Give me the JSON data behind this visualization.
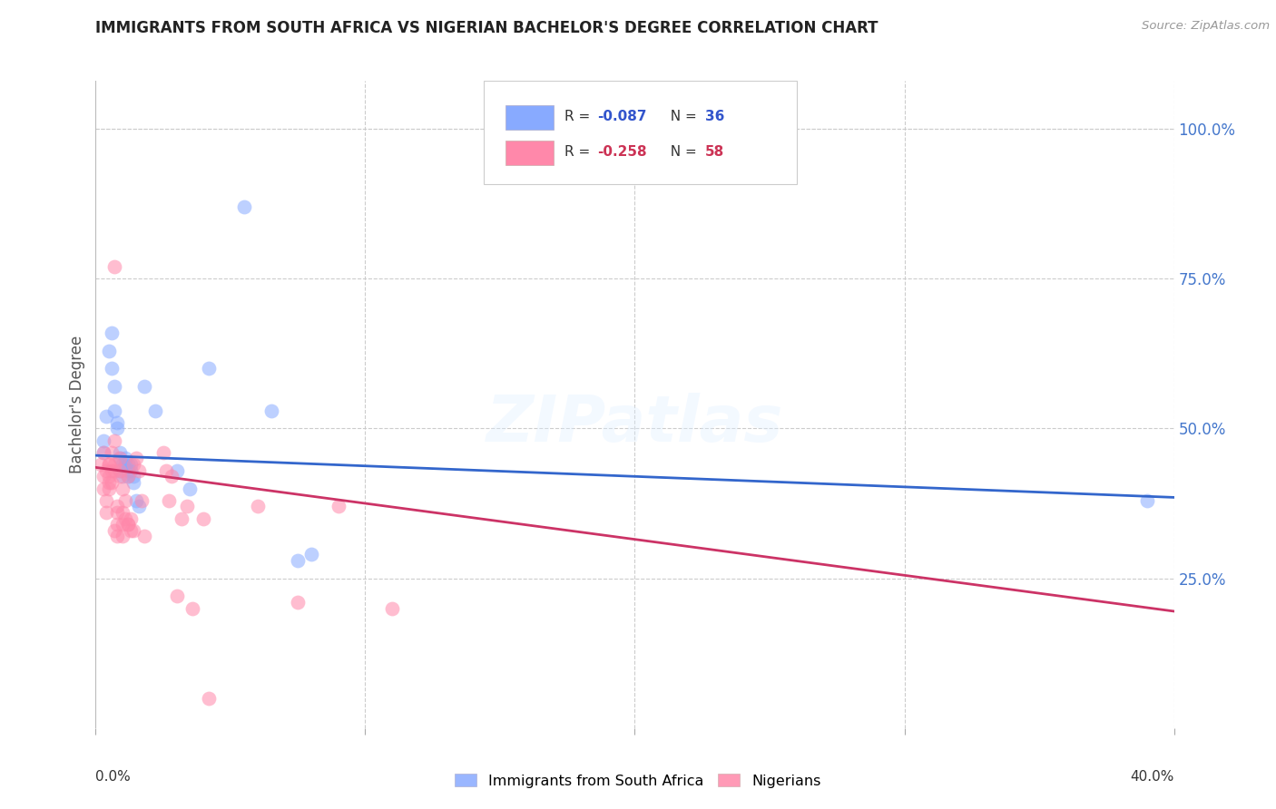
{
  "title": "IMMIGRANTS FROM SOUTH AFRICA VS NIGERIAN BACHELOR'S DEGREE CORRELATION CHART",
  "source": "Source: ZipAtlas.com",
  "ylabel": "Bachelor's Degree",
  "right_yticks": [
    "100.0%",
    "75.0%",
    "50.0%",
    "25.0%"
  ],
  "right_ytick_vals": [
    1.0,
    0.75,
    0.5,
    0.25
  ],
  "xmin": 0.0,
  "xmax": 0.4,
  "ymin": 0.0,
  "ymax": 1.08,
  "blue_points": [
    [
      0.003,
      0.46
    ],
    [
      0.003,
      0.48
    ],
    [
      0.004,
      0.52
    ],
    [
      0.005,
      0.63
    ],
    [
      0.006,
      0.66
    ],
    [
      0.006,
      0.6
    ],
    [
      0.007,
      0.57
    ],
    [
      0.007,
      0.53
    ],
    [
      0.008,
      0.51
    ],
    [
      0.008,
      0.5
    ],
    [
      0.009,
      0.46
    ],
    [
      0.009,
      0.43
    ],
    [
      0.009,
      0.45
    ],
    [
      0.01,
      0.44
    ],
    [
      0.01,
      0.42
    ],
    [
      0.011,
      0.45
    ],
    [
      0.011,
      0.44
    ],
    [
      0.012,
      0.43
    ],
    [
      0.012,
      0.44
    ],
    [
      0.012,
      0.42
    ],
    [
      0.013,
      0.44
    ],
    [
      0.013,
      0.43
    ],
    [
      0.014,
      0.42
    ],
    [
      0.014,
      0.41
    ],
    [
      0.015,
      0.38
    ],
    [
      0.016,
      0.37
    ],
    [
      0.018,
      0.57
    ],
    [
      0.022,
      0.53
    ],
    [
      0.03,
      0.43
    ],
    [
      0.035,
      0.4
    ],
    [
      0.042,
      0.6
    ],
    [
      0.055,
      0.87
    ],
    [
      0.065,
      0.53
    ],
    [
      0.075,
      0.28
    ],
    [
      0.08,
      0.29
    ],
    [
      0.39,
      0.38
    ]
  ],
  "pink_points": [
    [
      0.002,
      0.44
    ],
    [
      0.003,
      0.42
    ],
    [
      0.003,
      0.4
    ],
    [
      0.003,
      0.46
    ],
    [
      0.004,
      0.43
    ],
    [
      0.004,
      0.38
    ],
    [
      0.004,
      0.36
    ],
    [
      0.005,
      0.44
    ],
    [
      0.005,
      0.41
    ],
    [
      0.005,
      0.44
    ],
    [
      0.005,
      0.42
    ],
    [
      0.005,
      0.4
    ],
    [
      0.006,
      0.46
    ],
    [
      0.006,
      0.43
    ],
    [
      0.006,
      0.41
    ],
    [
      0.007,
      0.48
    ],
    [
      0.007,
      0.44
    ],
    [
      0.007,
      0.33
    ],
    [
      0.007,
      0.43
    ],
    [
      0.007,
      0.77
    ],
    [
      0.008,
      0.36
    ],
    [
      0.008,
      0.37
    ],
    [
      0.008,
      0.34
    ],
    [
      0.008,
      0.32
    ],
    [
      0.009,
      0.45
    ],
    [
      0.009,
      0.43
    ],
    [
      0.009,
      0.42
    ],
    [
      0.01,
      0.4
    ],
    [
      0.01,
      0.36
    ],
    [
      0.01,
      0.34
    ],
    [
      0.01,
      0.32
    ],
    [
      0.011,
      0.38
    ],
    [
      0.011,
      0.35
    ],
    [
      0.012,
      0.34
    ],
    [
      0.012,
      0.42
    ],
    [
      0.012,
      0.34
    ],
    [
      0.013,
      0.35
    ],
    [
      0.013,
      0.33
    ],
    [
      0.014,
      0.33
    ],
    [
      0.014,
      0.44
    ],
    [
      0.015,
      0.45
    ],
    [
      0.016,
      0.43
    ],
    [
      0.017,
      0.38
    ],
    [
      0.018,
      0.32
    ],
    [
      0.025,
      0.46
    ],
    [
      0.026,
      0.43
    ],
    [
      0.027,
      0.38
    ],
    [
      0.028,
      0.42
    ],
    [
      0.03,
      0.22
    ],
    [
      0.032,
      0.35
    ],
    [
      0.034,
      0.37
    ],
    [
      0.036,
      0.2
    ],
    [
      0.04,
      0.35
    ],
    [
      0.042,
      0.05
    ],
    [
      0.06,
      0.37
    ],
    [
      0.075,
      0.21
    ],
    [
      0.09,
      0.37
    ],
    [
      0.11,
      0.2
    ]
  ],
  "blue_line": {
    "x0": 0.0,
    "y0": 0.455,
    "x1": 0.4,
    "y1": 0.385
  },
  "pink_line": {
    "x0": 0.0,
    "y0": 0.435,
    "x1": 0.4,
    "y1": 0.195
  },
  "point_size": 130,
  "point_alpha": 0.55,
  "bg_color": "#ffffff",
  "grid_color": "#cccccc",
  "title_color": "#222222",
  "source_color": "#999999",
  "blue_color": "#88aaff",
  "pink_color": "#ff88aa",
  "line_blue_color": "#3366cc",
  "line_pink_color": "#cc3366",
  "right_axis_color": "#4477cc",
  "xtick_label_color": "#333333",
  "legend_blue_text_color": "#3355cc",
  "legend_pink_text_color": "#cc3355"
}
